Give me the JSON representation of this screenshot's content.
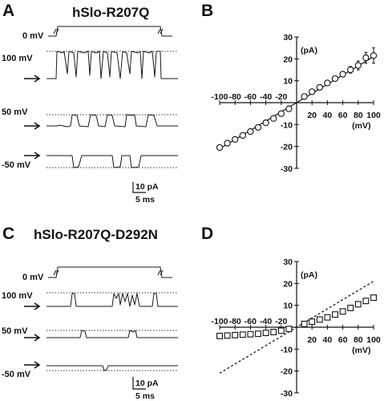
{
  "panels": [
    {
      "letter": "A",
      "title": "hSlo-R207Q",
      "protocol_label": "0 mV",
      "voltages": [
        "100 mV",
        "50 mV",
        "-50 mV"
      ],
      "scalebar": {
        "current": "10 pA",
        "time": "5 ms"
      }
    },
    {
      "letter": "B"
    },
    {
      "letter": "C",
      "title": "hSlo-R207Q-D292N",
      "protocol_label": "0 mV",
      "voltages": [
        "100 mV",
        "50 mV",
        "-50 mV"
      ],
      "scalebar": {
        "current": "10 pA",
        "time": "5 ms"
      }
    },
    {
      "letter": "D"
    }
  ],
  "chart_data": [
    {
      "type": "scatter",
      "panel": "B",
      "xlabel": "(mV)",
      "ylabel": "(pA)",
      "xlim": [
        -100,
        100
      ],
      "ylim": [
        -30,
        30
      ],
      "xticks": [
        -100,
        -80,
        -60,
        -40,
        -20,
        20,
        40,
        60,
        80,
        100
      ],
      "xtick_labels": [
        "-100",
        "-80",
        "-60",
        "-40",
        "-20",
        "20",
        "40",
        "60",
        "80",
        "100"
      ],
      "yticks": [
        30,
        20,
        10,
        -10,
        -20,
        -30
      ],
      "ytick_labels": [
        "30",
        "20",
        "10",
        "-10",
        "-20",
        "-30"
      ],
      "marker": "circle",
      "series": [
        {
          "x": [
            -100,
            -90,
            -80,
            -70,
            -60,
            -50,
            -40,
            -30,
            -20,
            -10,
            10,
            20,
            30,
            40,
            50,
            60,
            70,
            80,
            90,
            100
          ],
          "y": [
            -20.5,
            -18.5,
            -16.8,
            -15.0,
            -13.2,
            -11.3,
            -9.2,
            -7.2,
            -5.0,
            -2.8,
            2.8,
            5.0,
            7.0,
            9.0,
            11.0,
            13.0,
            15.0,
            17.0,
            20.5,
            21.5
          ],
          "err": [
            1.0,
            1.0,
            0.8,
            0.8,
            0.8,
            0.6,
            0.6,
            0.6,
            0.5,
            0.5,
            0.5,
            0.5,
            0.6,
            0.6,
            0.8,
            1.0,
            1.5,
            2.0,
            2.5,
            3.5
          ]
        }
      ],
      "fit_line": {
        "style": "solid",
        "x": [
          -100,
          100
        ],
        "y": [
          -21,
          21
        ]
      }
    },
    {
      "type": "scatter",
      "panel": "D",
      "xlabel": "(mV)",
      "ylabel": "(pA)",
      "xlim": [
        -100,
        100
      ],
      "ylim": [
        -30,
        30
      ],
      "xticks": [
        -100,
        -80,
        -60,
        -40,
        -20,
        20,
        40,
        60,
        80,
        100
      ],
      "xtick_labels": [
        "-100",
        "-80",
        "-60",
        "-40",
        "-20",
        "20",
        "40",
        "60",
        "80",
        "100"
      ],
      "yticks": [
        30,
        20,
        10,
        -10,
        -20,
        -30
      ],
      "ytick_labels": [
        "30",
        "20",
        "10",
        "-10",
        "-20",
        "-30"
      ],
      "marker": "square",
      "series": [
        {
          "x": [
            -100,
            -90,
            -80,
            -70,
            -60,
            -50,
            -40,
            -30,
            -20,
            -10,
            10,
            20,
            30,
            40,
            50,
            60,
            70,
            80,
            90,
            100
          ],
          "y": [
            -4.0,
            -3.8,
            -3.6,
            -3.4,
            -3.2,
            -3.0,
            -2.6,
            -2.2,
            -1.6,
            -0.8,
            1.5,
            2.5,
            3.5,
            4.5,
            5.8,
            7.2,
            8.8,
            10.5,
            12.0,
            13.5
          ],
          "err": [
            0.6,
            0.6,
            0.6,
            0.5,
            0.5,
            0.5,
            0.5,
            0.4,
            0.4,
            0.4,
            0.4,
            0.4,
            0.5,
            0.5,
            0.6,
            0.7,
            1.0,
            1.2,
            1.2,
            1.0
          ]
        }
      ],
      "fit_line": {
        "style": "dashed",
        "x": [
          -100,
          100
        ],
        "y": [
          -21,
          21
        ]
      }
    }
  ]
}
